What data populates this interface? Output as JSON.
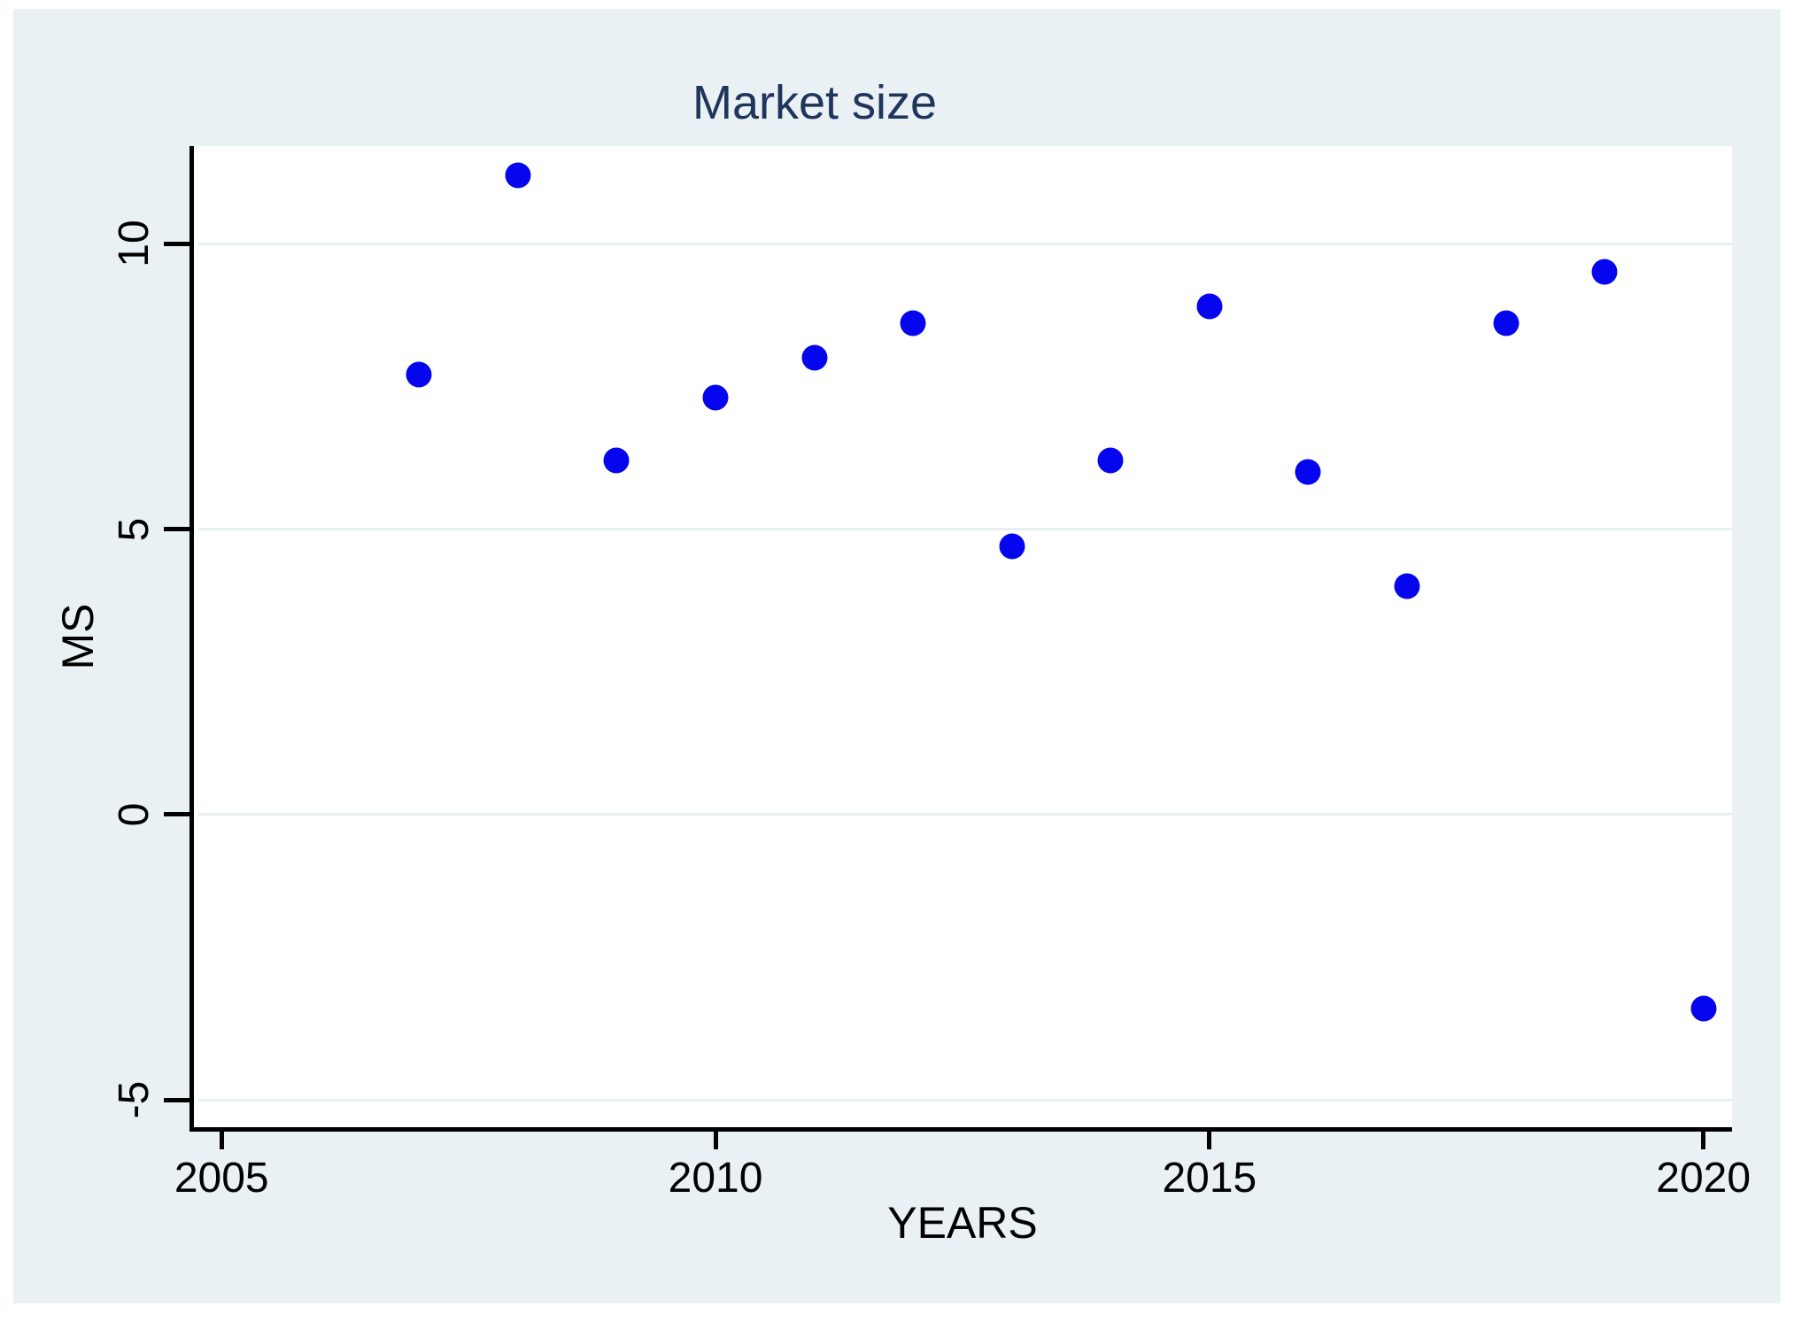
{
  "title": "Market size",
  "chart_data": {
    "type": "scatter",
    "title": "Market size",
    "xlabel": "YEARS",
    "ylabel": "MS",
    "x": [
      2007,
      2008,
      2009,
      2010,
      2011,
      2012,
      2013,
      2014,
      2015,
      2016,
      2017,
      2018,
      2019,
      2020
    ],
    "y": [
      7.7,
      11.2,
      6.2,
      7.3,
      8.0,
      8.6,
      4.7,
      6.2,
      8.9,
      6.0,
      4.0,
      8.6,
      9.5,
      -3.4
    ],
    "xticks": [
      2005,
      2010,
      2015,
      2020
    ],
    "yticks": [
      10,
      5,
      0,
      -5
    ],
    "xlim": [
      2004.72,
      2020.29
    ],
    "ylim": [
      -5.48,
      11.71
    ],
    "grid": "horizontal-only",
    "legend": "none"
  },
  "colors": {
    "canvas_background": "#eaf1f4",
    "plot_background": "#ffffff",
    "gridline": "#e8eff2",
    "axis": "#000000",
    "title_text": "#1f355c",
    "tick_text": "#000000",
    "marker": "#0505ee"
  }
}
